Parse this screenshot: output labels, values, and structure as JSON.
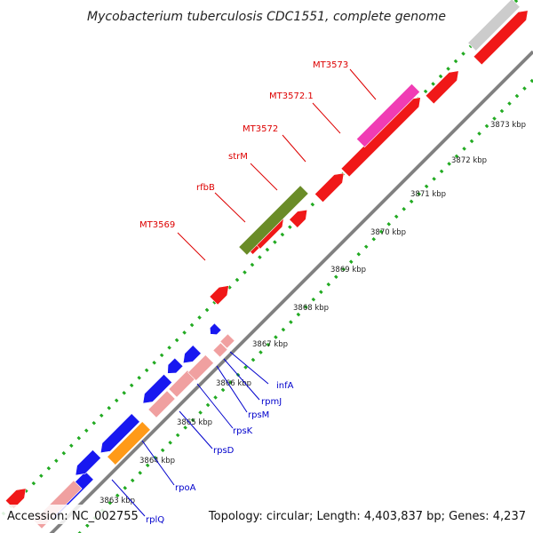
{
  "header": {
    "title": "Mycobacterium tuberculosis CDC1551, complete genome"
  },
  "footer": {
    "accession": "Accession: NC_002755",
    "summary": "Topology: circular; Length: 4,403,837 bp; Genes: 4,237"
  },
  "colors": {
    "red": "#f01818",
    "pink": "#f0a0a0",
    "blue": "#1818f0",
    "orange": "#ff9a18",
    "olive": "#6a8c28",
    "magenta": "#f03cb4",
    "gray": "#cccccc",
    "dots": "#22aa22",
    "label_red": "#dd0000",
    "label_blue": "#0000cc"
  },
  "ticks": [
    {
      "label": "3863 kbp"
    },
    {
      "label": "3864 kbp"
    },
    {
      "label": "3865 kbp"
    },
    {
      "label": "3866 kbp"
    },
    {
      "label": "3867 kbp"
    },
    {
      "label": "3868 kbp"
    },
    {
      "label": "3869 kbp"
    },
    {
      "label": "3870 kbp"
    },
    {
      "label": "3871 kbp"
    },
    {
      "label": "3872 kbp"
    },
    {
      "label": "3873 kbp"
    }
  ],
  "gene_labels": [
    {
      "name": "MT3569",
      "color": "red"
    },
    {
      "name": "rfbB",
      "color": "red"
    },
    {
      "name": "strM",
      "color": "red"
    },
    {
      "name": "MT3572",
      "color": "red"
    },
    {
      "name": "MT3572.1",
      "color": "red"
    },
    {
      "name": "MT3573",
      "color": "red"
    },
    {
      "name": "infA",
      "color": "blue"
    },
    {
      "name": "rpmJ",
      "color": "blue"
    },
    {
      "name": "rpsM",
      "color": "blue"
    },
    {
      "name": "rpsK",
      "color": "blue"
    },
    {
      "name": "rpsD",
      "color": "blue"
    },
    {
      "name": "rpoA",
      "color": "blue"
    },
    {
      "name": "rplQ",
      "color": "blue"
    }
  ]
}
